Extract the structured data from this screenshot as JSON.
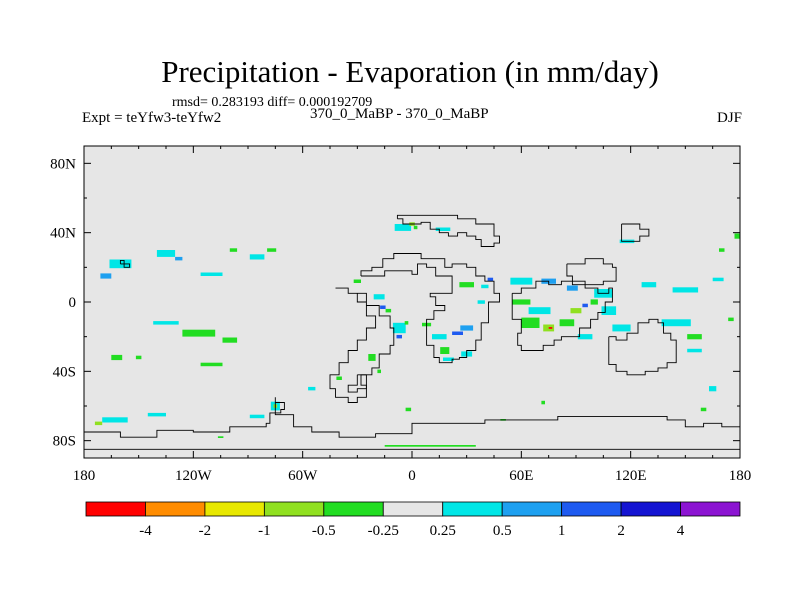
{
  "chart_data": {
    "type": "heatmap",
    "title": "Precipitation - Evaporation (in mm/day)",
    "stats_line": "rmsd= 0.283193  diff= 0.000192709",
    "left_label": "Expt = teYfw3-teYfw2",
    "center_label": "370_0_MaBP - 370_0_MaBP",
    "season": "DJF",
    "xlim": [
      -180,
      180
    ],
    "ylim": [
      -90,
      90
    ],
    "x_ticks": [
      {
        "value": -180,
        "label": "180"
      },
      {
        "value": -120,
        "label": "120W"
      },
      {
        "value": -60,
        "label": "60W"
      },
      {
        "value": 0,
        "label": "0"
      },
      {
        "value": 60,
        "label": "60E"
      },
      {
        "value": 120,
        "label": "120E"
      },
      {
        "value": 180,
        "label": "180"
      }
    ],
    "y_ticks": [
      {
        "value": 80,
        "label": "80N"
      },
      {
        "value": 40,
        "label": "40N"
      },
      {
        "value": 0,
        "label": "0"
      },
      {
        "value": -40,
        "label": "40S"
      },
      {
        "value": -80,
        "label": "80S"
      }
    ],
    "colorbar": {
      "colors": [
        "#ff0000",
        "#ff8c00",
        "#e8e800",
        "#90e020",
        "#22dd22",
        "#e6e6e6",
        "#00e6e6",
        "#1ea0f0",
        "#1e5af0",
        "#1414d2",
        "#8c14d2"
      ],
      "labels": [
        "-4",
        "-2",
        "-1",
        "-0.5",
        "-0.25",
        "0.25",
        "0.5",
        "1",
        "2",
        "4"
      ]
    },
    "background_color": "#e6e6e6",
    "anomalies": [
      {
        "lon": -160,
        "lat": 22,
        "cls": 6,
        "w": 12,
        "h": 5
      },
      {
        "lon": -168,
        "lat": 15,
        "cls": 7,
        "w": 6,
        "h": 3
      },
      {
        "lon": -135,
        "lat": 28,
        "cls": 6,
        "w": 10,
        "h": 4
      },
      {
        "lon": -128,
        "lat": 25,
        "cls": 7,
        "w": 4,
        "h": 2
      },
      {
        "lon": -110,
        "lat": 16,
        "cls": 6,
        "w": 12,
        "h": 2
      },
      {
        "lon": -85,
        "lat": 26,
        "cls": 6,
        "w": 8,
        "h": 3
      },
      {
        "lon": -77,
        "lat": 30,
        "cls": 4,
        "w": 5,
        "h": 2
      },
      {
        "lon": -98,
        "lat": 30,
        "cls": 4,
        "w": 4,
        "h": 2
      },
      {
        "lon": -135,
        "lat": -12,
        "cls": 6,
        "w": 14,
        "h": 2
      },
      {
        "lon": -117,
        "lat": -18,
        "cls": 4,
        "w": 18,
        "h": 4
      },
      {
        "lon": -100,
        "lat": -22,
        "cls": 4,
        "w": 8,
        "h": 3
      },
      {
        "lon": -162,
        "lat": -32,
        "cls": 4,
        "w": 6,
        "h": 3
      },
      {
        "lon": -150,
        "lat": -32,
        "cls": 4,
        "w": 3,
        "h": 2
      },
      {
        "lon": -110,
        "lat": -36,
        "cls": 4,
        "w": 12,
        "h": 2
      },
      {
        "lon": -163,
        "lat": -68,
        "cls": 6,
        "w": 14,
        "h": 3
      },
      {
        "lon": -172,
        "lat": -70,
        "cls": 3,
        "w": 4,
        "h": 2
      },
      {
        "lon": -140,
        "lat": -65,
        "cls": 6,
        "w": 10,
        "h": 2
      },
      {
        "lon": -75,
        "lat": -60,
        "cls": 6,
        "w": 5,
        "h": 5
      },
      {
        "lon": -75,
        "lat": -60,
        "cls": 3,
        "w": 2,
        "h": 2
      },
      {
        "lon": -85,
        "lat": -66,
        "cls": 6,
        "w": 8,
        "h": 2
      },
      {
        "lon": -5,
        "lat": 43,
        "cls": 6,
        "w": 9,
        "h": 4
      },
      {
        "lon": 0,
        "lat": 45,
        "cls": 3,
        "w": 3,
        "h": 2
      },
      {
        "lon": 2,
        "lat": 43,
        "cls": 4,
        "w": 2,
        "h": 2
      },
      {
        "lon": 17,
        "lat": 42,
        "cls": 6,
        "w": 8,
        "h": 2
      },
      {
        "lon": -30,
        "lat": 12,
        "cls": 4,
        "w": 4,
        "h": 2
      },
      {
        "lon": -18,
        "lat": 3,
        "cls": 6,
        "w": 6,
        "h": 3
      },
      {
        "lon": -16,
        "lat": -3,
        "cls": 8,
        "w": 3,
        "h": 2
      },
      {
        "lon": -13,
        "lat": -5,
        "cls": 4,
        "w": 3,
        "h": 2
      },
      {
        "lon": -7,
        "lat": -15,
        "cls": 6,
        "w": 7,
        "h": 6
      },
      {
        "lon": -7,
        "lat": -20,
        "cls": 8,
        "w": 3,
        "h": 2
      },
      {
        "lon": -3,
        "lat": -12,
        "cls": 4,
        "w": 2,
        "h": 2
      },
      {
        "lon": 8,
        "lat": -13,
        "cls": 4,
        "w": 5,
        "h": 2
      },
      {
        "lon": 15,
        "lat": -20,
        "cls": 6,
        "w": 8,
        "h": 3
      },
      {
        "lon": 25,
        "lat": -18,
        "cls": 8,
        "w": 6,
        "h": 2
      },
      {
        "lon": 30,
        "lat": -15,
        "cls": 7,
        "w": 7,
        "h": 3
      },
      {
        "lon": 18,
        "lat": -28,
        "cls": 4,
        "w": 5,
        "h": 4
      },
      {
        "lon": 20,
        "lat": -33,
        "cls": 6,
        "w": 6,
        "h": 2
      },
      {
        "lon": 30,
        "lat": -30,
        "cls": 6,
        "w": 6,
        "h": 3
      },
      {
        "lon": 30,
        "lat": 10,
        "cls": 4,
        "w": 8,
        "h": 3
      },
      {
        "lon": 40,
        "lat": 9,
        "cls": 6,
        "w": 4,
        "h": 2
      },
      {
        "lon": 43,
        "lat": 13,
        "cls": 8,
        "w": 3,
        "h": 2
      },
      {
        "lon": 38,
        "lat": 0,
        "cls": 6,
        "w": 4,
        "h": 2
      },
      {
        "lon": -22,
        "lat": -32,
        "cls": 4,
        "w": 4,
        "h": 4
      },
      {
        "lon": -18,
        "lat": -40,
        "cls": 4,
        "w": 2,
        "h": 2
      },
      {
        "lon": -40,
        "lat": -44,
        "cls": 4,
        "w": 3,
        "h": 2
      },
      {
        "lon": 60,
        "lat": 12,
        "cls": 6,
        "w": 12,
        "h": 4
      },
      {
        "lon": 75,
        "lat": 12,
        "cls": 7,
        "w": 8,
        "h": 3
      },
      {
        "lon": 88,
        "lat": 8,
        "cls": 7,
        "w": 6,
        "h": 3
      },
      {
        "lon": 105,
        "lat": 5,
        "cls": 6,
        "w": 10,
        "h": 5
      },
      {
        "lon": 130,
        "lat": 10,
        "cls": 6,
        "w": 8,
        "h": 3
      },
      {
        "lon": 150,
        "lat": 7,
        "cls": 6,
        "w": 14,
        "h": 3
      },
      {
        "lon": 168,
        "lat": 13,
        "cls": 6,
        "w": 6,
        "h": 2
      },
      {
        "lon": 60,
        "lat": 0,
        "cls": 4,
        "w": 10,
        "h": 3
      },
      {
        "lon": 70,
        "lat": -5,
        "cls": 6,
        "w": 12,
        "h": 4
      },
      {
        "lon": 65,
        "lat": -12,
        "cls": 4,
        "w": 10,
        "h": 6
      },
      {
        "lon": 75,
        "lat": -15,
        "cls": 3,
        "w": 6,
        "h": 4
      },
      {
        "lon": 76,
        "lat": -15,
        "cls": 0,
        "w": 2,
        "h": 1
      },
      {
        "lon": 85,
        "lat": -12,
        "cls": 4,
        "w": 8,
        "h": 4
      },
      {
        "lon": 90,
        "lat": -5,
        "cls": 3,
        "w": 6,
        "h": 3
      },
      {
        "lon": 95,
        "lat": -2,
        "cls": 8,
        "w": 3,
        "h": 2
      },
      {
        "lon": 100,
        "lat": 0,
        "cls": 4,
        "w": 4,
        "h": 3
      },
      {
        "lon": 108,
        "lat": -5,
        "cls": 6,
        "w": 8,
        "h": 5
      },
      {
        "lon": 115,
        "lat": -15,
        "cls": 6,
        "w": 10,
        "h": 4
      },
      {
        "lon": 95,
        "lat": -20,
        "cls": 6,
        "w": 8,
        "h": 3
      },
      {
        "lon": 145,
        "lat": -12,
        "cls": 6,
        "w": 16,
        "h": 4
      },
      {
        "lon": 155,
        "lat": -20,
        "cls": 4,
        "w": 8,
        "h": 3
      },
      {
        "lon": 155,
        "lat": -28,
        "cls": 6,
        "w": 8,
        "h": 2
      },
      {
        "lon": 175,
        "lat": -10,
        "cls": 4,
        "w": 3,
        "h": 2
      },
      {
        "lon": 180,
        "lat": 38,
        "cls": 4,
        "w": 3,
        "h": 3
      },
      {
        "lon": 118,
        "lat": 35,
        "cls": 6,
        "w": 8,
        "h": 2
      },
      {
        "lon": 170,
        "lat": 30,
        "cls": 4,
        "w": 3,
        "h": 2
      },
      {
        "lon": 165,
        "lat": -50,
        "cls": 6,
        "w": 4,
        "h": 3
      },
      {
        "lon": 160,
        "lat": -62,
        "cls": 4,
        "w": 3,
        "h": 2
      },
      {
        "lon": 10,
        "lat": -83,
        "cls": 4,
        "w": 50,
        "h": 1
      },
      {
        "lon": -105,
        "lat": -78,
        "cls": 4,
        "w": 3,
        "h": 1
      },
      {
        "lon": 50,
        "lat": -68,
        "cls": 4,
        "w": 3,
        "h": 1
      },
      {
        "lon": 72,
        "lat": -58,
        "cls": 4,
        "w": 2,
        "h": 2
      },
      {
        "lon": -55,
        "lat": -50,
        "cls": 6,
        "w": 4,
        "h": 2
      },
      {
        "lon": -2,
        "lat": -62,
        "cls": 4,
        "w": 3,
        "h": 2
      }
    ],
    "coastlines": [
      [
        [
          -28,
          15
        ],
        [
          -15,
          15
        ],
        [
          -15,
          18
        ],
        [
          -5,
          18
        ],
        [
          0,
          16
        ],
        [
          3,
          22
        ],
        [
          8,
          20
        ],
        [
          13,
          15
        ],
        [
          18,
          15
        ],
        [
          22,
          12
        ],
        [
          22,
          5
        ],
        [
          15,
          5
        ],
        [
          10,
          3
        ],
        [
          13,
          -2
        ],
        [
          18,
          -5
        ],
        [
          12,
          -10
        ],
        [
          8,
          -18
        ],
        [
          8,
          -25
        ],
        [
          12,
          -32
        ],
        [
          15,
          -35
        ],
        [
          22,
          -33
        ],
        [
          26,
          -32
        ],
        [
          30,
          -28
        ],
        [
          35,
          -22
        ],
        [
          38,
          -12
        ],
        [
          42,
          -5
        ],
        [
          42,
          0
        ],
        [
          48,
          5
        ],
        [
          45,
          12
        ],
        [
          40,
          15
        ],
        [
          35,
          20
        ],
        [
          30,
          22
        ],
        [
          22,
          20
        ],
        [
          18,
          25
        ],
        [
          5,
          28
        ],
        [
          -5,
          28
        ],
        [
          -10,
          25
        ],
        [
          -16,
          20
        ],
        [
          -22,
          18
        ],
        [
          -28,
          15
        ]
      ],
      [
        [
          -42,
          8
        ],
        [
          -35,
          5
        ],
        [
          -30,
          0
        ],
        [
          -25,
          -8
        ],
        [
          -20,
          -15
        ],
        [
          -25,
          -22
        ],
        [
          -30,
          -28
        ],
        [
          -35,
          -35
        ],
        [
          -40,
          -42
        ],
        [
          -45,
          -50
        ],
        [
          -42,
          -55
        ],
        [
          -35,
          -58
        ],
        [
          -30,
          -55
        ],
        [
          -25,
          -48
        ],
        [
          -28,
          -42
        ],
        [
          -22,
          -38
        ],
        [
          -18,
          -30
        ],
        [
          -12,
          -25
        ],
        [
          -10,
          -15
        ],
        [
          -12,
          -8
        ],
        [
          -18,
          -2
        ],
        [
          -25,
          5
        ],
        [
          -35,
          8
        ],
        [
          -42,
          8
        ]
      ],
      [
        [
          -8,
          48
        ],
        [
          -5,
          45
        ],
        [
          0,
          45
        ],
        [
          5,
          46
        ],
        [
          10,
          42
        ],
        [
          15,
          40
        ],
        [
          20,
          38
        ],
        [
          25,
          40
        ],
        [
          30,
          38
        ],
        [
          35,
          36
        ],
        [
          38,
          32
        ],
        [
          45,
          34
        ],
        [
          48,
          38
        ],
        [
          45,
          45
        ],
        [
          35,
          48
        ],
        [
          25,
          50
        ],
        [
          15,
          50
        ],
        [
          5,
          50
        ],
        [
          -3,
          50
        ],
        [
          -8,
          48
        ]
      ],
      [
        [
          -30,
          -42
        ],
        [
          -25,
          -45
        ],
        [
          -25,
          -50
        ],
        [
          -30,
          -52
        ],
        [
          -35,
          -48
        ],
        [
          -30,
          -42
        ]
      ],
      [
        [
          55,
          5
        ],
        [
          60,
          8
        ],
        [
          68,
          12
        ],
        [
          75,
          10
        ],
        [
          82,
          12
        ],
        [
          88,
          10
        ],
        [
          95,
          8
        ],
        [
          102,
          5
        ],
        [
          108,
          8
        ],
        [
          110,
          0
        ],
        [
          106,
          -6
        ],
        [
          102,
          -10
        ],
        [
          98,
          -15
        ],
        [
          92,
          -20
        ],
        [
          88,
          -20
        ],
        [
          82,
          -22
        ],
        [
          78,
          -25
        ],
        [
          72,
          -28
        ],
        [
          65,
          -28
        ],
        [
          60,
          -25
        ],
        [
          58,
          -18
        ],
        [
          60,
          -10
        ],
        [
          55,
          -3
        ],
        [
          55,
          5
        ]
      ],
      [
        [
          108,
          -20
        ],
        [
          112,
          -22
        ],
        [
          118,
          -18
        ],
        [
          124,
          -12
        ],
        [
          130,
          -10
        ],
        [
          135,
          -12
        ],
        [
          138,
          -18
        ],
        [
          142,
          -22
        ],
        [
          145,
          -28
        ],
        [
          145,
          -35
        ],
        [
          140,
          -38
        ],
        [
          135,
          -40
        ],
        [
          128,
          -42
        ],
        [
          118,
          -40
        ],
        [
          112,
          -36
        ],
        [
          108,
          -30
        ],
        [
          108,
          -20
        ]
      ],
      [
        [
          85,
          22
        ],
        [
          95,
          25
        ],
        [
          105,
          22
        ],
        [
          110,
          20
        ],
        [
          112,
          12
        ],
        [
          105,
          10
        ],
        [
          95,
          12
        ],
        [
          88,
          15
        ],
        [
          85,
          22
        ]
      ],
      [
        [
          115,
          45
        ],
        [
          125,
          42
        ],
        [
          130,
          38
        ],
        [
          125,
          35
        ],
        [
          120,
          35
        ],
        [
          115,
          38
        ],
        [
          115,
          45
        ]
      ],
      [
        [
          -160,
          22
        ],
        [
          -158,
          20
        ],
        [
          -155,
          22
        ],
        [
          -158,
          24
        ],
        [
          -160,
          22
        ]
      ],
      [
        [
          -180,
          -75
        ],
        [
          -160,
          -78
        ],
        [
          -140,
          -74
        ],
        [
          -120,
          -75
        ],
        [
          -100,
          -72
        ],
        [
          -80,
          -70
        ],
        [
          -78,
          -64
        ],
        [
          -72,
          -62
        ],
        [
          -70,
          -58
        ],
        [
          -75,
          -55
        ],
        [
          -75,
          -65
        ],
        [
          -65,
          -72
        ],
        [
          -55,
          -75
        ],
        [
          -40,
          -78
        ],
        [
          -20,
          -76
        ],
        [
          0,
          -70
        ],
        [
          20,
          -70
        ],
        [
          40,
          -68
        ],
        [
          60,
          -68
        ],
        [
          80,
          -66
        ],
        [
          100,
          -66
        ],
        [
          120,
          -66
        ],
        [
          140,
          -68
        ],
        [
          150,
          -72
        ],
        [
          160,
          -70
        ],
        [
          170,
          -72
        ],
        [
          180,
          -75
        ]
      ],
      [
        [
          -180,
          -85
        ],
        [
          0,
          -85
        ],
        [
          180,
          -85
        ]
      ]
    ]
  }
}
